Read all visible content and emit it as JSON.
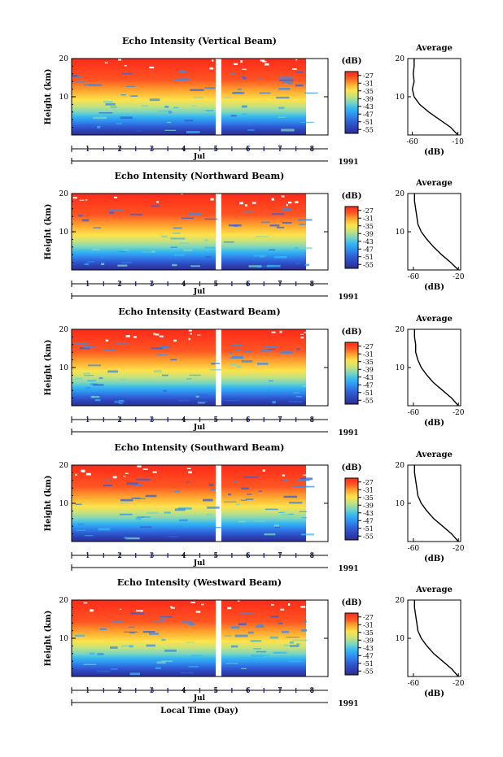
{
  "colors": {
    "colormap": [
      "#2b2f8f",
      "#2d43b8",
      "#2f62d9",
      "#2f8ff0",
      "#35b8f0",
      "#7bd6c0",
      "#c8e27a",
      "#ffe24a",
      "#ffa630",
      "#ff5522",
      "#ff2a1a"
    ],
    "axis": "#000000",
    "date_marker": "#1a237e"
  },
  "common": {
    "month_label": "Jul",
    "year_label": "1991",
    "day_labels": [
      "1",
      "2",
      "3",
      "4",
      "5",
      "6",
      "7",
      "8"
    ],
    "y_axis_label": "Height (km)",
    "y_ticks": [
      "20",
      "10"
    ],
    "cbar_unit": "(dB)",
    "cbar_ticks": [
      "-27",
      "-31",
      "-35",
      "-39",
      "-43",
      "-47",
      "-51",
      "-55"
    ],
    "avg_title": "Average",
    "avg_xlabel": "(dB)",
    "xaxis_title": "Local Time (Day)"
  },
  "chart_data": [
    {
      "type": "heatmap",
      "title": "Echo Intensity (Vertical Beam)",
      "ylabel": "Height (km)",
      "ylim": [
        0,
        20
      ],
      "x_day_range": [
        0.5,
        8.5
      ],
      "data_gaps_days": [
        [
          5.0,
          5.2
        ],
        [
          7.4,
          8.5
        ]
      ],
      "colorbar": {
        "unit": "(dB)",
        "range": [
          -57,
          -25
        ],
        "ticks": [
          -27,
          -31,
          -35,
          -39,
          -43,
          -47,
          -51,
          -55
        ]
      },
      "average_profile": {
        "title": "Average",
        "xlabel": "(dB)",
        "xlim": [
          -65,
          -7
        ],
        "xticks": [
          "-60",
          "-10"
        ],
        "height_km": [
          0,
          2,
          4,
          6,
          8,
          10,
          12,
          14,
          16,
          18,
          20
        ],
        "db": [
          -10,
          -18,
          -30,
          -42,
          -52,
          -58,
          -60,
          -58,
          -59,
          -58,
          -58
        ]
      }
    },
    {
      "type": "heatmap",
      "title": "Echo Intensity (Northward Beam)",
      "ylabel": "Height (km)",
      "ylim": [
        0,
        20
      ],
      "x_day_range": [
        0.5,
        8.5
      ],
      "data_gaps_days": [
        [
          5.0,
          5.2
        ],
        [
          7.4,
          8.5
        ]
      ],
      "colorbar": {
        "unit": "(dB)",
        "range": [
          -57,
          -25
        ],
        "ticks": [
          -27,
          -31,
          -35,
          -39,
          -43,
          -47,
          -51,
          -55
        ]
      },
      "average_profile": {
        "title": "Average",
        "xlabel": "(dB)",
        "xlim": [
          -65,
          -18
        ],
        "xticks": [
          "-60",
          "-20"
        ],
        "height_km": [
          0,
          2,
          4,
          6,
          8,
          10,
          12,
          14,
          16,
          18,
          20
        ],
        "db": [
          -20,
          -27,
          -35,
          -42,
          -48,
          -53,
          -56,
          -57,
          -58,
          -59,
          -59
        ]
      }
    },
    {
      "type": "heatmap",
      "title": "Echo Intensity (Eastward Beam)",
      "ylabel": "Height (km)",
      "ylim": [
        0,
        20
      ],
      "x_day_range": [
        0.5,
        8.5
      ],
      "data_gaps_days": [
        [
          5.0,
          5.2
        ],
        [
          7.4,
          8.5
        ]
      ],
      "colorbar": {
        "unit": "(dB)",
        "range": [
          -57,
          -25
        ],
        "ticks": [
          -27,
          -31,
          -35,
          -39,
          -43,
          -47,
          -51,
          -55
        ]
      },
      "average_profile": {
        "title": "Average",
        "xlabel": "(dB)",
        "xlim": [
          -65,
          -18
        ],
        "xticks": [
          "-60",
          "-20"
        ],
        "height_km": [
          0,
          2,
          4,
          6,
          8,
          10,
          12,
          14,
          16,
          18,
          20
        ],
        "db": [
          -20,
          -26,
          -34,
          -42,
          -48,
          -53,
          -56,
          -58,
          -58,
          -59,
          -59
        ]
      }
    },
    {
      "type": "heatmap",
      "title": "Echo Intensity (Southward Beam)",
      "ylabel": "Height (km)",
      "ylim": [
        0,
        20
      ],
      "x_day_range": [
        0.5,
        8.5
      ],
      "data_gaps_days": [
        [
          5.0,
          5.2
        ],
        [
          7.4,
          8.5
        ]
      ],
      "colorbar": {
        "unit": "(dB)",
        "range": [
          -57,
          -25
        ],
        "ticks": [
          -27,
          -31,
          -35,
          -39,
          -43,
          -47,
          -51,
          -55
        ]
      },
      "average_profile": {
        "title": "Average",
        "xlabel": "(dB)",
        "xlim": [
          -65,
          -18
        ],
        "xticks": [
          "-60",
          "-20"
        ],
        "height_km": [
          0,
          2,
          4,
          6,
          8,
          10,
          12,
          14,
          16,
          18,
          20
        ],
        "db": [
          -20,
          -26,
          -34,
          -42,
          -48,
          -53,
          -56,
          -57,
          -58,
          -59,
          -59
        ]
      }
    },
    {
      "type": "heatmap",
      "title": "Echo Intensity (Westward Beam)",
      "ylabel": "Height (km)",
      "ylim": [
        0,
        20
      ],
      "x_day_range": [
        0.5,
        8.5
      ],
      "data_gaps_days": [
        [
          5.0,
          5.2
        ],
        [
          7.4,
          8.5
        ]
      ],
      "colorbar": {
        "unit": "(dB)",
        "range": [
          -57,
          -25
        ],
        "ticks": [
          -27,
          -31,
          -35,
          -39,
          -43,
          -47,
          -51,
          -55
        ]
      },
      "average_profile": {
        "title": "Average",
        "xlabel": "(dB)",
        "xlim": [
          -65,
          -18
        ],
        "xticks": [
          "-60",
          "-20"
        ],
        "height_km": [
          0,
          2,
          4,
          6,
          8,
          10,
          12,
          14,
          16,
          18,
          20
        ],
        "db": [
          -20,
          -26,
          -34,
          -42,
          -48,
          -53,
          -56,
          -57,
          -58,
          -59,
          -59
        ]
      }
    }
  ]
}
